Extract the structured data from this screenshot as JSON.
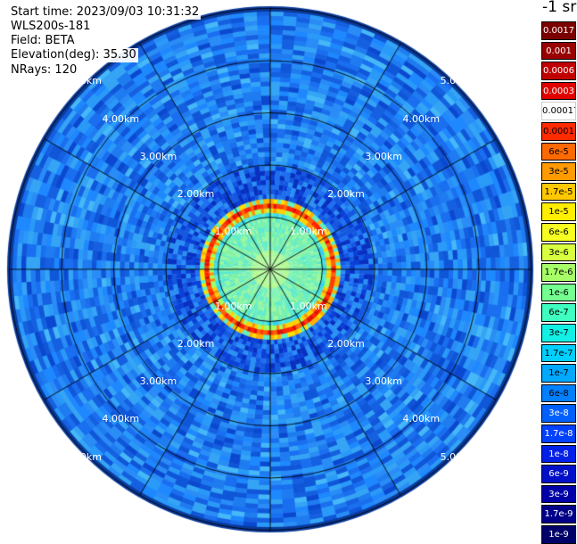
{
  "info": {
    "start_time": "Start time: 2023/09/03 10:31:32",
    "instrument": "WLS200s-181",
    "field": "Field: BETA",
    "elevation": "Elevation(deg): 35.30",
    "nrays": "NRays: 120"
  },
  "colorbar": {
    "unit_label": "-1 sr",
    "levels": [
      {
        "label": "0.0017",
        "color": "#7a0000"
      },
      {
        "label": "0.001",
        "color": "#990000"
      },
      {
        "label": "0.0006",
        "color": "#c00000"
      },
      {
        "label": "0.0003",
        "color": "#e00000"
      },
      {
        "label": "0.00017",
        "color": "#ffffff"
      },
      {
        "label": "0.0001",
        "color": "#ff2a00"
      },
      {
        "label": "6e-5",
        "color": "#ff6a00"
      },
      {
        "label": "3e-5",
        "color": "#ff9a00"
      },
      {
        "label": "1.7e-5",
        "color": "#ffc800"
      },
      {
        "label": "1e-5",
        "color": "#ffee00"
      },
      {
        "label": "6e-6",
        "color": "#f6ff20"
      },
      {
        "label": "3e-6",
        "color": "#d8ff40"
      },
      {
        "label": "1.7e-6",
        "color": "#a6ff66"
      },
      {
        "label": "1e-6",
        "color": "#74ff90"
      },
      {
        "label": "6e-7",
        "color": "#3effbf"
      },
      {
        "label": "3e-7",
        "color": "#12f0e6"
      },
      {
        "label": "1.7e-7",
        "color": "#00d0ff"
      },
      {
        "label": "1e-7",
        "color": "#00a8ff"
      },
      {
        "label": "6e-8",
        "color": "#0080ff"
      },
      {
        "label": "3e-8",
        "color": "#0060ff"
      },
      {
        "label": "1.7e-8",
        "color": "#0040ff"
      },
      {
        "label": "1e-8",
        "color": "#0020e8"
      },
      {
        "label": "6e-9",
        "color": "#0010c8"
      },
      {
        "label": "3e-9",
        "color": "#0000a8"
      },
      {
        "label": "1.7e-9",
        "color": "#000088"
      },
      {
        "label": "1e-9",
        "color": "#00006a"
      }
    ]
  },
  "rings": [
    {
      "label": "1.00km"
    },
    {
      "label": "2.00km"
    },
    {
      "label": "3.00km"
    },
    {
      "label": "4.00km"
    },
    {
      "label": "5.00km"
    }
  ],
  "colors": {
    "background_blue": "#1e7cf0",
    "inner_cyan": "#60f0c0",
    "aerosol_ring": "#ff3a00",
    "grid": "#000000"
  }
}
